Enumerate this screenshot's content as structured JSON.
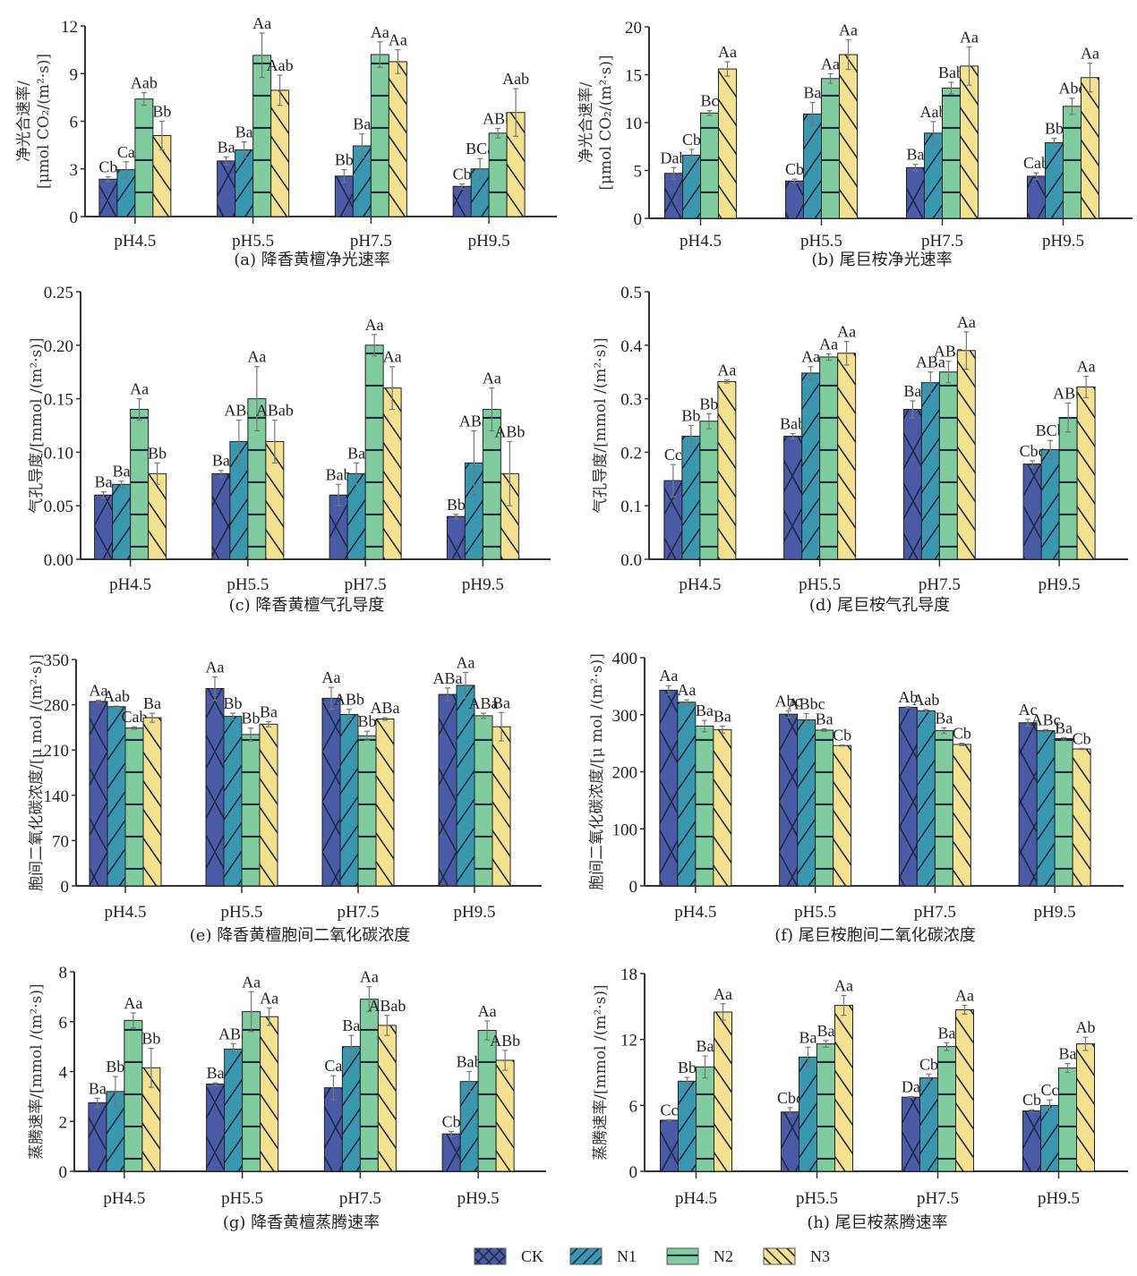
{
  "figure": {
    "groups": [
      "pH4.5",
      "pH5.5",
      "pH7.5",
      "pH9.5"
    ],
    "legend": [
      {
        "key": "CK",
        "label": "CK",
        "color": "#4a5aa6",
        "pattern": "crosshatch"
      },
      {
        "key": "N1",
        "label": "N1",
        "color": "#3a97b0",
        "pattern": "forward-diagonal"
      },
      {
        "key": "N2",
        "label": "N2",
        "color": "#80cc9f",
        "pattern": "horizontal"
      },
      {
        "key": "N3",
        "label": "N3",
        "color": "#f3e190",
        "pattern": "back-diagonal"
      }
    ]
  },
  "chart_data": [
    {
      "id": "a",
      "type": "bar",
      "title": "(a) 降香黄檀净光速率",
      "ylabel_line1": "净光合速率/",
      "ylabel_line2": "[μmol CO₂/(m²·s)]",
      "categories": [
        "pH4.5",
        "pH5.5",
        "pH7.5",
        "pH9.5"
      ],
      "ylim": [
        0,
        12
      ],
      "yticks": [
        "0",
        "3",
        "6",
        "9",
        "12"
      ],
      "ytick_values": [
        0,
        3,
        6,
        9,
        12
      ],
      "series": [
        {
          "name": "CK",
          "values": [
            2.35,
            3.5,
            2.55,
            1.9
          ],
          "errors": [
            0.15,
            0.25,
            0.4,
            0.15
          ],
          "labels": [
            "Cb",
            "Ba",
            "Bb",
            "Cb"
          ]
        },
        {
          "name": "N1",
          "values": [
            2.95,
            4.2,
            4.45,
            3.0
          ],
          "errors": [
            0.5,
            0.5,
            0.75,
            0.65
          ],
          "labels": [
            "Ca",
            "Ba",
            "Ba",
            "BCa"
          ]
        },
        {
          "name": "N2",
          "values": [
            7.4,
            10.15,
            10.2,
            5.25
          ],
          "errors": [
            0.4,
            1.4,
            0.8,
            0.3
          ],
          "labels": [
            "Aab",
            "Aa",
            "Aa",
            "ABb"
          ]
        },
        {
          "name": "N3",
          "values": [
            5.1,
            7.95,
            9.75,
            6.55
          ],
          "errors": [
            0.9,
            0.95,
            0.75,
            1.5
          ],
          "labels": [
            "Bb",
            "Aab",
            "Aa",
            "Aab"
          ]
        }
      ]
    },
    {
      "id": "b",
      "type": "bar",
      "title": "(b) 尾巨桉净光速率",
      "ylabel_line1": "净光合速率/",
      "ylabel_line2": "[μmol CO₂/(m²·s)]",
      "categories": [
        "pH4.5",
        "pH5.5",
        "pH7.5",
        "pH9.5"
      ],
      "ylim": [
        0,
        20
      ],
      "yticks": [
        "0",
        "5",
        "10",
        "15",
        "20"
      ],
      "ytick_values": [
        0,
        5,
        10,
        15,
        20
      ],
      "series": [
        {
          "name": "CK",
          "values": [
            4.7,
            3.9,
            5.3,
            4.4
          ],
          "errors": [
            0.6,
            0.2,
            0.35,
            0.35
          ],
          "labels": [
            "Dab",
            "Cb",
            "Ba",
            "Cab"
          ]
        },
        {
          "name": "N1",
          "values": [
            6.6,
            10.9,
            8.9,
            7.9
          ],
          "errors": [
            0.6,
            1.2,
            1.2,
            0.45
          ],
          "labels": [
            "Cb",
            "Ba",
            "Aab",
            "Bb"
          ]
        },
        {
          "name": "N2",
          "values": [
            11.0,
            14.6,
            13.6,
            11.7
          ],
          "errors": [
            0.25,
            0.5,
            0.6,
            0.85
          ],
          "labels": [
            "Bc",
            "Aa",
            "Bab",
            "Abc"
          ]
        },
        {
          "name": "N3",
          "values": [
            15.6,
            17.1,
            15.9,
            14.7
          ],
          "errors": [
            0.75,
            1.55,
            2.0,
            1.5
          ],
          "labels": [
            "Aa",
            "Aa",
            "Aa",
            "Aa"
          ]
        }
      ]
    },
    {
      "id": "c",
      "type": "bar",
      "title": "(c) 降香黄檀气孔导度",
      "ylabel_line1": "气孔导度/[mmol /(m²·s)]",
      "ylabel_line2": "",
      "categories": [
        "pH4.5",
        "pH5.5",
        "pH7.5",
        "pH9.5"
      ],
      "ylim": [
        0,
        0.25
      ],
      "yticks": [
        "0.00",
        "0.05",
        "0.10",
        "0.15",
        "0.20",
        "0.25"
      ],
      "ytick_values": [
        0,
        0.05,
        0.1,
        0.15,
        0.2,
        0.25
      ],
      "series": [
        {
          "name": "CK",
          "values": [
            0.06,
            0.08,
            0.06,
            0.04
          ],
          "errors": [
            0.003,
            0.003,
            0.01,
            0.002
          ],
          "labels": [
            "Ba",
            "Ba",
            "Bab",
            "Bb"
          ]
        },
        {
          "name": "N1",
          "values": [
            0.07,
            0.11,
            0.08,
            0.09
          ],
          "errors": [
            0.003,
            0.02,
            0.01,
            0.03
          ],
          "labels": [
            "Ba",
            "ABa",
            "Ba",
            "ABa"
          ]
        },
        {
          "name": "N2",
          "values": [
            0.14,
            0.15,
            0.2,
            0.14
          ],
          "errors": [
            0.01,
            0.03,
            0.01,
            0.02
          ],
          "labels": [
            "Aa",
            "Aa",
            "Aa",
            "Aa"
          ]
        },
        {
          "name": "N3",
          "values": [
            0.08,
            0.11,
            0.16,
            0.08
          ],
          "errors": [
            0.01,
            0.02,
            0.02,
            0.03
          ],
          "labels": [
            "Bb",
            "ABab",
            "Aa",
            "ABb"
          ]
        }
      ]
    },
    {
      "id": "d",
      "type": "bar",
      "title": "(d) 尾巨桉气孔导度",
      "ylabel_line1": "气孔导度/[mmol /(m²·s)]",
      "ylabel_line2": "",
      "categories": [
        "pH4.5",
        "pH5.5",
        "pH7.5",
        "pH9.5"
      ],
      "ylim": [
        0,
        0.5
      ],
      "yticks": [
        "0.0",
        "0.1",
        "0.2",
        "0.3",
        "0.4",
        "0.5"
      ],
      "ytick_values": [
        0,
        0.1,
        0.2,
        0.3,
        0.4,
        0.5
      ],
      "series": [
        {
          "name": "CK",
          "values": [
            0.147,
            0.23,
            0.28,
            0.178
          ],
          "errors": [
            0.03,
            0.005,
            0.016,
            0.006
          ],
          "labels": [
            "Cc",
            "Bab",
            "Ba",
            "Cbc"
          ]
        },
        {
          "name": "N1",
          "values": [
            0.23,
            0.348,
            0.33,
            0.205
          ],
          "errors": [
            0.02,
            0.012,
            0.02,
            0.017
          ],
          "labels": [
            "Bb",
            "Aa",
            "ABa",
            "BCb"
          ]
        },
        {
          "name": "N2",
          "values": [
            0.258,
            0.378,
            0.35,
            0.265
          ],
          "errors": [
            0.014,
            0.006,
            0.02,
            0.027
          ],
          "labels": [
            "Bb",
            "Aa",
            "ABa",
            "ABb"
          ]
        },
        {
          "name": "N3",
          "values": [
            0.332,
            0.385,
            0.39,
            0.322
          ],
          "errors": [
            0.003,
            0.022,
            0.035,
            0.02
          ],
          "labels": [
            "Aa",
            "Aa",
            "Aa",
            "Aa"
          ]
        }
      ]
    },
    {
      "id": "e",
      "type": "bar",
      "title": "(e) 降香黄檀胞间二氧化碳浓度",
      "ylabel_line1": "胞间二氧化碳浓度/[μ mol /(m²·s)]",
      "ylabel_line2": "",
      "categories": [
        "pH4.5",
        "pH5.5",
        "pH7.5",
        "pH9.5"
      ],
      "ylim": [
        0,
        350
      ],
      "yticks": [
        "0",
        "70",
        "140",
        "210",
        "280",
        "350"
      ],
      "ytick_values": [
        0,
        70,
        140,
        210,
        280,
        350
      ],
      "series": [
        {
          "name": "CK",
          "values": [
            285,
            305,
            290,
            296
          ],
          "errors": [
            2,
            18,
            17,
            10
          ],
          "labels": [
            "Aa",
            "Aa",
            "Aa",
            "ABa"
          ]
        },
        {
          "name": "N1",
          "values": [
            277,
            262,
            265,
            310
          ],
          "errors": [
            1,
            5,
            8,
            20
          ],
          "labels": [
            "Aab",
            "Bb",
            "ABb",
            "Aa"
          ]
        },
        {
          "name": "N2",
          "values": [
            244,
            234,
            232,
            263
          ],
          "errors": [
            2,
            10,
            7,
            4
          ],
          "labels": [
            "Cab",
            "Bb",
            "Bb",
            "ABa"
          ]
        },
        {
          "name": "N3",
          "values": [
            260,
            250,
            258,
            246
          ],
          "errors": [
            7,
            4,
            2,
            22
          ],
          "labels": [
            "Ba",
            "Ba",
            "ABa",
            "Ba"
          ]
        }
      ]
    },
    {
      "id": "f",
      "type": "bar",
      "title": "(f) 尾巨桉胞间二氧化碳浓度",
      "ylabel_line1": "胞间二氧化碳浓度/[μ mol /(m²·s)]",
      "ylabel_line2": "",
      "categories": [
        "pH4.5",
        "pH5.5",
        "pH7.5",
        "pH9.5"
      ],
      "ylim": [
        0,
        400
      ],
      "yticks": [
        "0",
        "100",
        "200",
        "300",
        "400"
      ],
      "ytick_values": [
        0,
        100,
        200,
        300,
        400
      ],
      "series": [
        {
          "name": "CK",
          "values": [
            343,
            301,
            313,
            286
          ],
          "errors": [
            8,
            6,
            1,
            6
          ],
          "labels": [
            "Aa",
            "Abc",
            "Ab",
            "Ac"
          ]
        },
        {
          "name": "N1",
          "values": [
            322,
            291,
            307,
            272
          ],
          "errors": [
            4,
            11,
            2,
            2
          ],
          "labels": [
            "Aa",
            "ABbc",
            "Aab",
            "ABc"
          ]
        },
        {
          "name": "N2",
          "values": [
            280,
            273,
            272,
            258
          ],
          "errors": [
            10,
            2,
            5,
            2
          ],
          "labels": [
            "Ba",
            "Ba",
            "Ba",
            "Ba"
          ]
        },
        {
          "name": "N3",
          "values": [
            274,
            246,
            248,
            240
          ],
          "errors": [
            6,
            1,
            2,
            1
          ],
          "labels": [
            "Ba",
            "Cb",
            "Cb",
            "Cb"
          ]
        }
      ]
    },
    {
      "id": "g",
      "type": "bar",
      "title": "(g) 降香黄檀蒸腾速率",
      "ylabel_line1": "蒸腾速率/[mmol /(m²·s)]",
      "ylabel_line2": "",
      "categories": [
        "pH4.5",
        "pH5.5",
        "pH7.5",
        "pH9.5"
      ],
      "ylim": [
        0,
        8
      ],
      "yticks": [
        "0",
        "2",
        "4",
        "6",
        "8"
      ],
      "ytick_values": [
        0,
        2,
        4,
        6,
        8
      ],
      "series": [
        {
          "name": "CK",
          "values": [
            2.75,
            3.5,
            3.35,
            1.5
          ],
          "errors": [
            0.18,
            0.05,
            0.48,
            0.1
          ],
          "labels": [
            "Ba",
            "Ba",
            "Ca",
            "Cb"
          ]
        },
        {
          "name": "N1",
          "values": [
            3.2,
            4.9,
            5.0,
            3.6
          ],
          "errors": [
            0.6,
            0.22,
            0.45,
            0.4
          ],
          "labels": [
            "Bb",
            "ABa",
            "Ba",
            "Bab"
          ]
        },
        {
          "name": "N2",
          "values": [
            6.05,
            6.4,
            6.9,
            5.65
          ],
          "errors": [
            0.3,
            0.8,
            0.5,
            0.38
          ],
          "labels": [
            "Aa",
            "Aa",
            "Aa",
            "Aa"
          ]
        },
        {
          "name": "N3",
          "values": [
            4.15,
            6.2,
            5.85,
            4.45
          ],
          "errors": [
            0.78,
            0.35,
            0.4,
            0.4
          ],
          "labels": [
            "Bb",
            "Aa",
            "ABab",
            "ABb"
          ]
        }
      ]
    },
    {
      "id": "h",
      "type": "bar",
      "title": "(h) 尾巨桉蒸腾速率",
      "ylabel_line1": "蒸腾速率/[mmol /(m²·s)]",
      "ylabel_line2": "",
      "categories": [
        "pH4.5",
        "pH5.5",
        "pH7.5",
        "pH9.5"
      ],
      "ylim": [
        0,
        18
      ],
      "yticks": [
        "0",
        "6",
        "12",
        "18"
      ],
      "ytick_values": [
        0,
        6,
        12,
        18
      ],
      "series": [
        {
          "name": "CK",
          "values": [
            4.65,
            5.4,
            6.75,
            5.5
          ],
          "errors": [
            0.05,
            0.4,
            0.05,
            0.1
          ],
          "labels": [
            "Cc",
            "Cbc",
            "Da",
            "Cb"
          ]
        },
        {
          "name": "N1",
          "values": [
            8.2,
            10.4,
            8.5,
            6.0
          ],
          "errors": [
            0.35,
            0.9,
            0.35,
            0.5
          ],
          "labels": [
            "Bb",
            "Ba",
            "Cb",
            "Cc"
          ]
        },
        {
          "name": "N2",
          "values": [
            9.5,
            11.6,
            11.35,
            9.4
          ],
          "errors": [
            1.0,
            0.3,
            0.35,
            0.4
          ],
          "labels": [
            "Ba",
            "Ba",
            "Ba",
            "Ba"
          ]
        },
        {
          "name": "N3",
          "values": [
            14.5,
            15.1,
            14.7,
            11.6
          ],
          "errors": [
            0.75,
            0.9,
            0.4,
            0.6
          ],
          "labels": [
            "Aa",
            "Aa",
            "Aa",
            "Ab"
          ]
        }
      ]
    }
  ]
}
